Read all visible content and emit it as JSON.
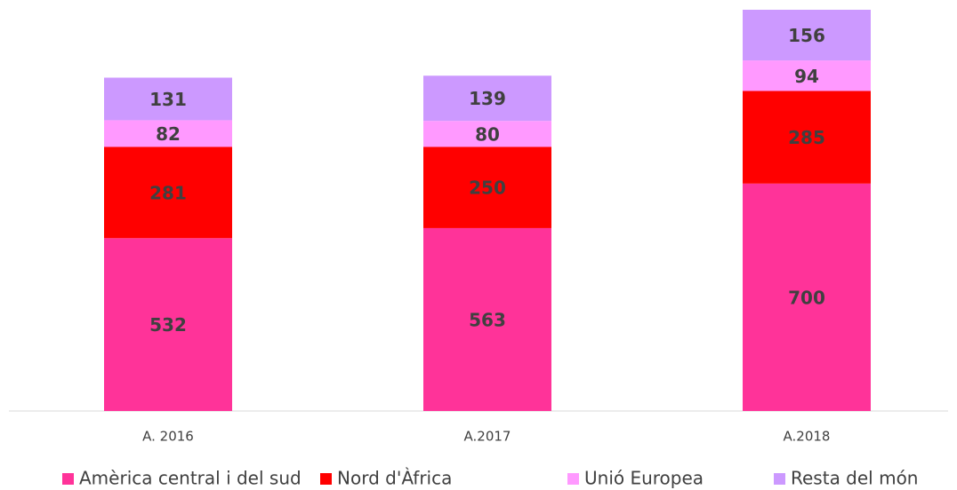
{
  "chart_data": {
    "type": "bar",
    "stacked": true,
    "categories": [
      "A. 2016",
      "A.2017",
      "A.2018"
    ],
    "series": [
      {
        "name": "Amèrica central i del sud",
        "color": "#ff3399",
        "values": [
          532,
          563,
          700
        ]
      },
      {
        "name": "Nord d'Àfrica",
        "color": "#ff0000",
        "values": [
          281,
          250,
          285
        ]
      },
      {
        "name": "Unió Europea",
        "color": "#ff99ff",
        "values": [
          82,
          80,
          94
        ]
      },
      {
        "name": "Resta del món",
        "color": "#cc99ff",
        "values": [
          131,
          139,
          156
        ]
      }
    ],
    "legend": "bottom"
  }
}
